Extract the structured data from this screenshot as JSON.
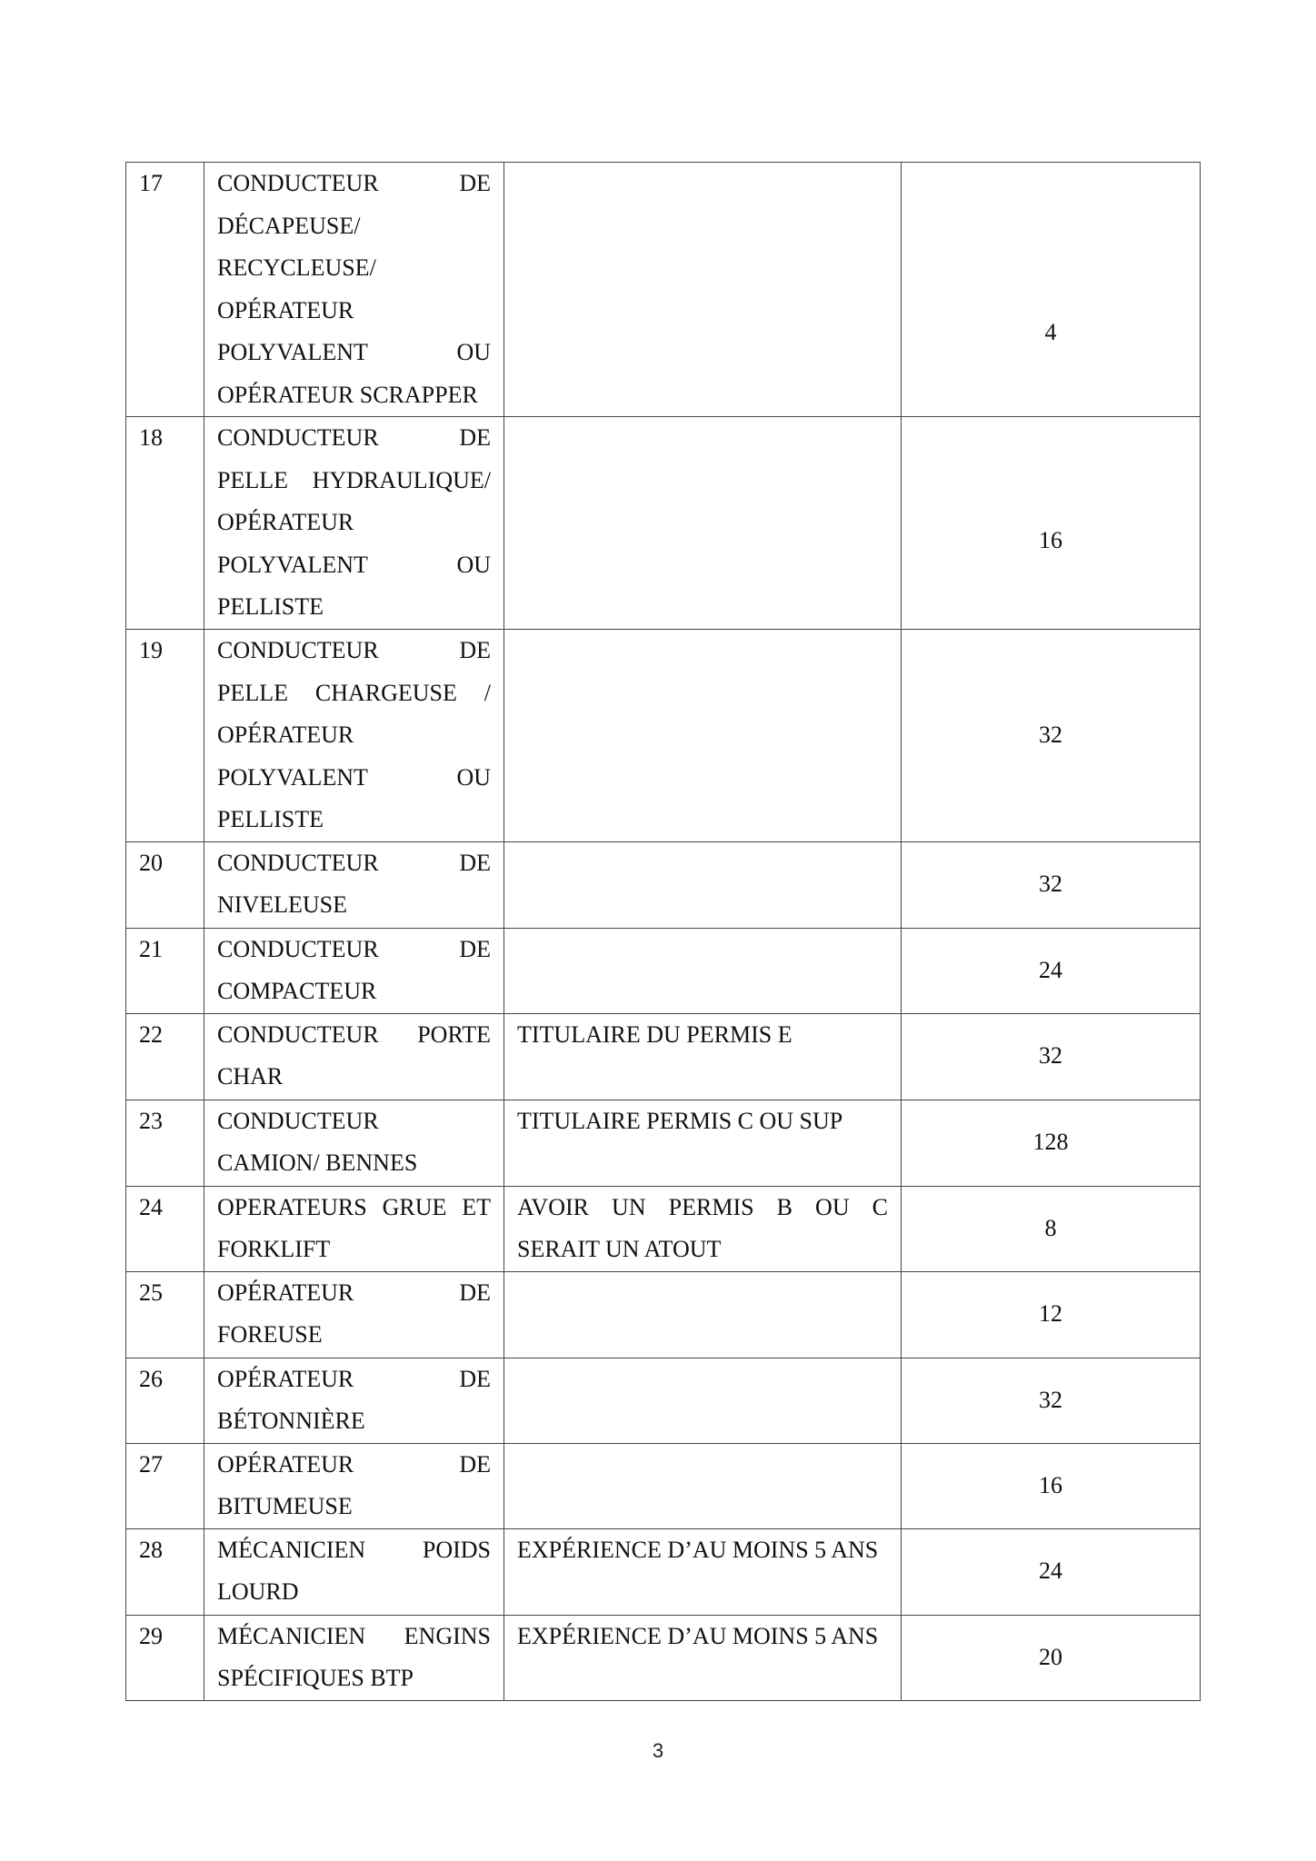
{
  "table": {
    "rows": [
      {
        "no": "17",
        "poste": [
          "CONDUCTEUR DE",
          "DÉCAPEUSE/",
          "RECYCLEUSE/",
          "OPÉRATEUR",
          "POLYVALENT OU",
          "OPÉRATEUR SCRAPPER"
        ],
        "conditions": [],
        "effectif": "4"
      },
      {
        "no": "18",
        "poste": [
          "CONDUCTEUR DE",
          "PELLE HYDRAULIQUE/",
          "OPÉRATEUR",
          "POLYVALENT OU",
          "PELLISTE"
        ],
        "conditions": [],
        "effectif": "16"
      },
      {
        "no": "19",
        "poste": [
          "CONDUCTEUR DE",
          "PELLE CHARGEUSE /",
          "OPÉRATEUR",
          "POLYVALENT OU",
          "PELLISTE"
        ],
        "conditions": [],
        "effectif": "32"
      },
      {
        "no": "20",
        "poste": [
          "CONDUCTEUR DE",
          "NIVELEUSE"
        ],
        "conditions": [],
        "effectif": "32"
      },
      {
        "no": "21",
        "poste": [
          "CONDUCTEUR DE",
          "COMPACTEUR"
        ],
        "conditions": [],
        "effectif": "24"
      },
      {
        "no": "22",
        "poste": [
          "CONDUCTEUR PORTE",
          "CHAR"
        ],
        "conditions": [
          "TITULAIRE DU PERMIS E"
        ],
        "effectif": "32"
      },
      {
        "no": "23",
        "poste": [
          "CONDUCTEUR",
          "CAMION/ BENNES"
        ],
        "conditions": [
          "TITULAIRE PERMIS C OU SUP"
        ],
        "effectif": "128"
      },
      {
        "no": "24",
        "poste": [
          "OPERATEURS GRUE ET",
          "FORKLIFT"
        ],
        "conditions": [
          "AVOIR UN PERMIS B OU C",
          "SERAIT UN ATOUT"
        ],
        "effectif": "8"
      },
      {
        "no": "25",
        "poste": [
          "OPÉRATEUR DE",
          "FOREUSE"
        ],
        "conditions": [],
        "effectif": "12"
      },
      {
        "no": "26",
        "poste": [
          "OPÉRATEUR DE",
          "BÉTONNIÈRE"
        ],
        "conditions": [],
        "effectif": "32"
      },
      {
        "no": "27",
        "poste": [
          "OPÉRATEUR DE",
          "BITUMEUSE"
        ],
        "conditions": [],
        "effectif": "16"
      },
      {
        "no": "28",
        "poste": [
          "MÉCANICIEN POIDS",
          "LOURD"
        ],
        "conditions": [
          "EXPÉRIENCE D’AU MOINS 5 ANS"
        ],
        "effectif": "24"
      },
      {
        "no": "29",
        "poste": [
          "MÉCANICIEN ENGINS",
          "SPÉCIFIQUES BTP"
        ],
        "conditions": [
          "EXPÉRIENCE D’AU MOINS 5 ANS"
        ],
        "effectif": "20"
      }
    ]
  },
  "footer": {
    "page_number": "3"
  }
}
